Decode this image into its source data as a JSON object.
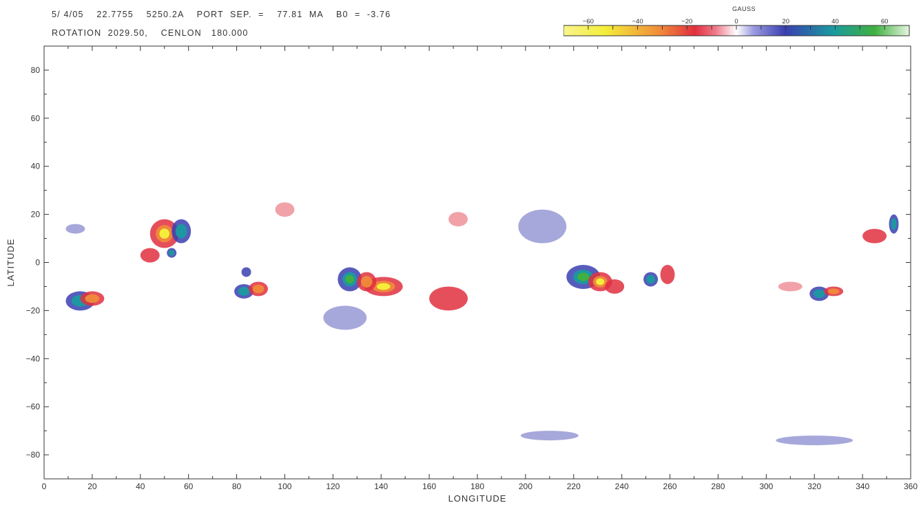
{
  "header": {
    "line1": "5/ 4/05    22.7755    5250.2A    PORT  SEP.  =    77.81  MA    B0  =  -3.76",
    "line2": "ROTATION  2029.50,    CENLON   180.000"
  },
  "colorbar": {
    "title": "GAUSS",
    "min": -70,
    "max": 70,
    "ticks": [
      -60,
      -40,
      -20,
      0,
      20,
      40,
      60
    ],
    "tick_labels": [
      "−60",
      "−40",
      "−20",
      "0",
      "20",
      "40",
      "60"
    ],
    "colors": {
      "neg_strong": "#f4ee3a",
      "neg_mid": "#f08a3a",
      "neg_weak": "#e0303f",
      "pos_weak": "#3a3fb0",
      "pos_mid": "#1a9aa0",
      "pos_strong": "#40b040"
    }
  },
  "chart_data": {
    "type": "heatmap",
    "xlabel": "LONGITUDE",
    "ylabel": "LATITUDE",
    "xlim": [
      0,
      360
    ],
    "ylim": [
      -90,
      90
    ],
    "xticks": [
      0,
      20,
      40,
      60,
      80,
      100,
      120,
      140,
      160,
      180,
      200,
      220,
      240,
      260,
      280,
      300,
      320,
      340,
      360
    ],
    "yticks": [
      -80,
      -60,
      -40,
      -20,
      0,
      20,
      40,
      60,
      80
    ],
    "value_units": "GAUSS",
    "regions": [
      {
        "lon": 15,
        "lat": -16,
        "rx": 6,
        "ry": 4,
        "value": 45
      },
      {
        "lon": 20,
        "lat": -15,
        "rx": 5,
        "ry": 3,
        "value": -35
      },
      {
        "lon": 50,
        "lat": 12,
        "rx": 6,
        "ry": 6,
        "value": -60
      },
      {
        "lon": 44,
        "lat": 3,
        "rx": 4,
        "ry": 3,
        "value": -25
      },
      {
        "lon": 57,
        "lat": 13,
        "rx": 4,
        "ry": 5,
        "value": 45
      },
      {
        "lon": 53,
        "lat": 4,
        "rx": 2,
        "ry": 2,
        "value": 35
      },
      {
        "lon": 83,
        "lat": -12,
        "rx": 4,
        "ry": 3,
        "value": 40
      },
      {
        "lon": 89,
        "lat": -11,
        "rx": 4,
        "ry": 3,
        "value": -40
      },
      {
        "lon": 84,
        "lat": -4,
        "rx": 2,
        "ry": 2,
        "value": 30
      },
      {
        "lon": 127,
        "lat": -7,
        "rx": 5,
        "ry": 5,
        "value": 50
      },
      {
        "lon": 141,
        "lat": -10,
        "rx": 8,
        "ry": 4,
        "value": -60
      },
      {
        "lon": 134,
        "lat": -8,
        "rx": 4,
        "ry": 4,
        "value": -45
      },
      {
        "lon": 125,
        "lat": -23,
        "rx": 9,
        "ry": 5,
        "value": 12
      },
      {
        "lon": 168,
        "lat": -15,
        "rx": 8,
        "ry": 5,
        "value": -18
      },
      {
        "lon": 207,
        "lat": 15,
        "rx": 10,
        "ry": 7,
        "value": 12
      },
      {
        "lon": 224,
        "lat": -6,
        "rx": 7,
        "ry": 5,
        "value": 50
      },
      {
        "lon": 231,
        "lat": -8,
        "rx": 5,
        "ry": 4,
        "value": -60
      },
      {
        "lon": 237,
        "lat": -10,
        "rx": 4,
        "ry": 3,
        "value": -25
      },
      {
        "lon": 252,
        "lat": -7,
        "rx": 3,
        "ry": 3,
        "value": 35
      },
      {
        "lon": 259,
        "lat": -5,
        "rx": 3,
        "ry": 4,
        "value": -30
      },
      {
        "lon": 322,
        "lat": -13,
        "rx": 4,
        "ry": 3,
        "value": 40
      },
      {
        "lon": 328,
        "lat": -12,
        "rx": 4,
        "ry": 2,
        "value": -40
      },
      {
        "lon": 345,
        "lat": 11,
        "rx": 5,
        "ry": 3,
        "value": -20
      },
      {
        "lon": 353,
        "lat": 16,
        "rx": 2,
        "ry": 4,
        "value": 40
      },
      {
        "lon": 13,
        "lat": 14,
        "rx": 4,
        "ry": 2,
        "value": 10
      },
      {
        "lon": 210,
        "lat": -72,
        "rx": 12,
        "ry": 2,
        "value": 8
      },
      {
        "lon": 320,
        "lat": -74,
        "rx": 16,
        "ry": 2,
        "value": 8
      },
      {
        "lon": 100,
        "lat": 22,
        "rx": 4,
        "ry": 3,
        "value": -10
      },
      {
        "lon": 172,
        "lat": 18,
        "rx": 4,
        "ry": 3,
        "value": -10
      },
      {
        "lon": 310,
        "lat": -10,
        "rx": 5,
        "ry": 2,
        "value": -10
      }
    ]
  }
}
